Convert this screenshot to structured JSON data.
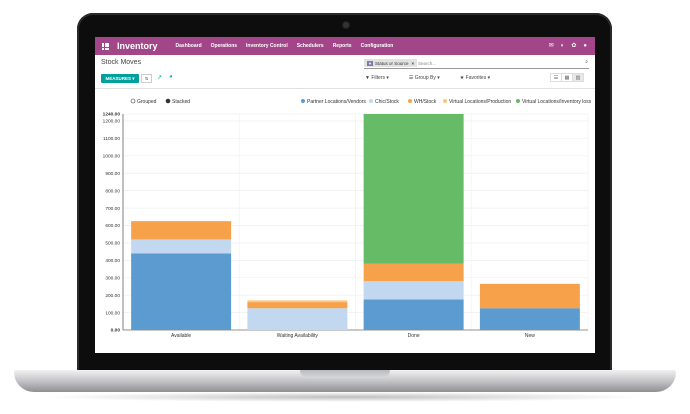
{
  "app": {
    "title": "Inventory",
    "menu": [
      "Dashboard",
      "Operations",
      "Inventory Control",
      "Schedulers",
      "Reports",
      "Configuration"
    ],
    "top_icons": [
      "mail-icon",
      "bell-icon",
      "settings-icon",
      "chat-icon"
    ]
  },
  "page": {
    "breadcrumb": "Stock Moves",
    "search": {
      "facet_tag": "Status or Source",
      "facet_close": "×",
      "placeholder": "Search..."
    },
    "toolbar": {
      "measures_label": "MEASURES ▾",
      "flip_label": "⇅",
      "filters_label": "Filters ▾",
      "group_by_label": "Group By ▾",
      "favorites_label": "Favorites ▾"
    }
  },
  "chart_data": {
    "type": "bar",
    "stacked": true,
    "toggle_options": [
      "Grouped",
      "Stacked"
    ],
    "toggle_selected": "Stacked",
    "categories": [
      "Available",
      "Waiting Availability",
      "Done",
      "New"
    ],
    "series": [
      {
        "name": "Partner Locations/Vendors",
        "color": "#5b9bcf",
        "values": [
          440,
          0,
          175,
          125
        ]
      },
      {
        "name": "Chic/Stock",
        "color": "#c2d8f0",
        "values": [
          80,
          125,
          105,
          0
        ]
      },
      {
        "name": "WH/Stock",
        "color": "#f7a14a",
        "values": [
          105,
          35,
          100,
          140
        ]
      },
      {
        "name": "Virtual Locations/Production",
        "color": "#fcc57c",
        "values": [
          0,
          10,
          0,
          0
        ]
      },
      {
        "name": "Virtual Locations/Inventory loss",
        "color": "#66bb66",
        "values": [
          0,
          0,
          860,
          0
        ]
      }
    ],
    "ylim": [
      0,
      1240
    ],
    "yticks": [
      0,
      100,
      200,
      300,
      400,
      500,
      600,
      700,
      800,
      900,
      1000,
      1100,
      1200,
      1240
    ],
    "ytick_labels": [
      "0.00",
      "100.00",
      "200.00",
      "300.00",
      "400.00",
      "500.00",
      "600.00",
      "700.00",
      "800.00",
      "900.00",
      "1000.00",
      "1100.00",
      "1200.00",
      "1240.00"
    ],
    "legend_position": "top",
    "grid": true
  }
}
